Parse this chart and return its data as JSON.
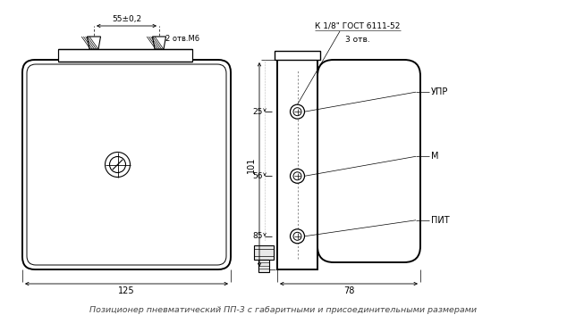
{
  "bg_color": "#ffffff",
  "line_color": "#000000",
  "caption": "Позиционер пневматический ПП-3 с габаритными и присоединительными размерами",
  "dim_55": "55±0,2",
  "dim_2otv": "2 отв.М6",
  "dim_101": "101",
  "dim_125": "125",
  "dim_25": "25",
  "dim_56": "56",
  "dim_85": "85",
  "dim_78": "78",
  "label_upr": "УПР",
  "label_m": "М",
  "label_pit": "ПИТ",
  "label_k": "К 1/8\" ГОСТ 6111-52",
  "label_3otv": "3 отв."
}
